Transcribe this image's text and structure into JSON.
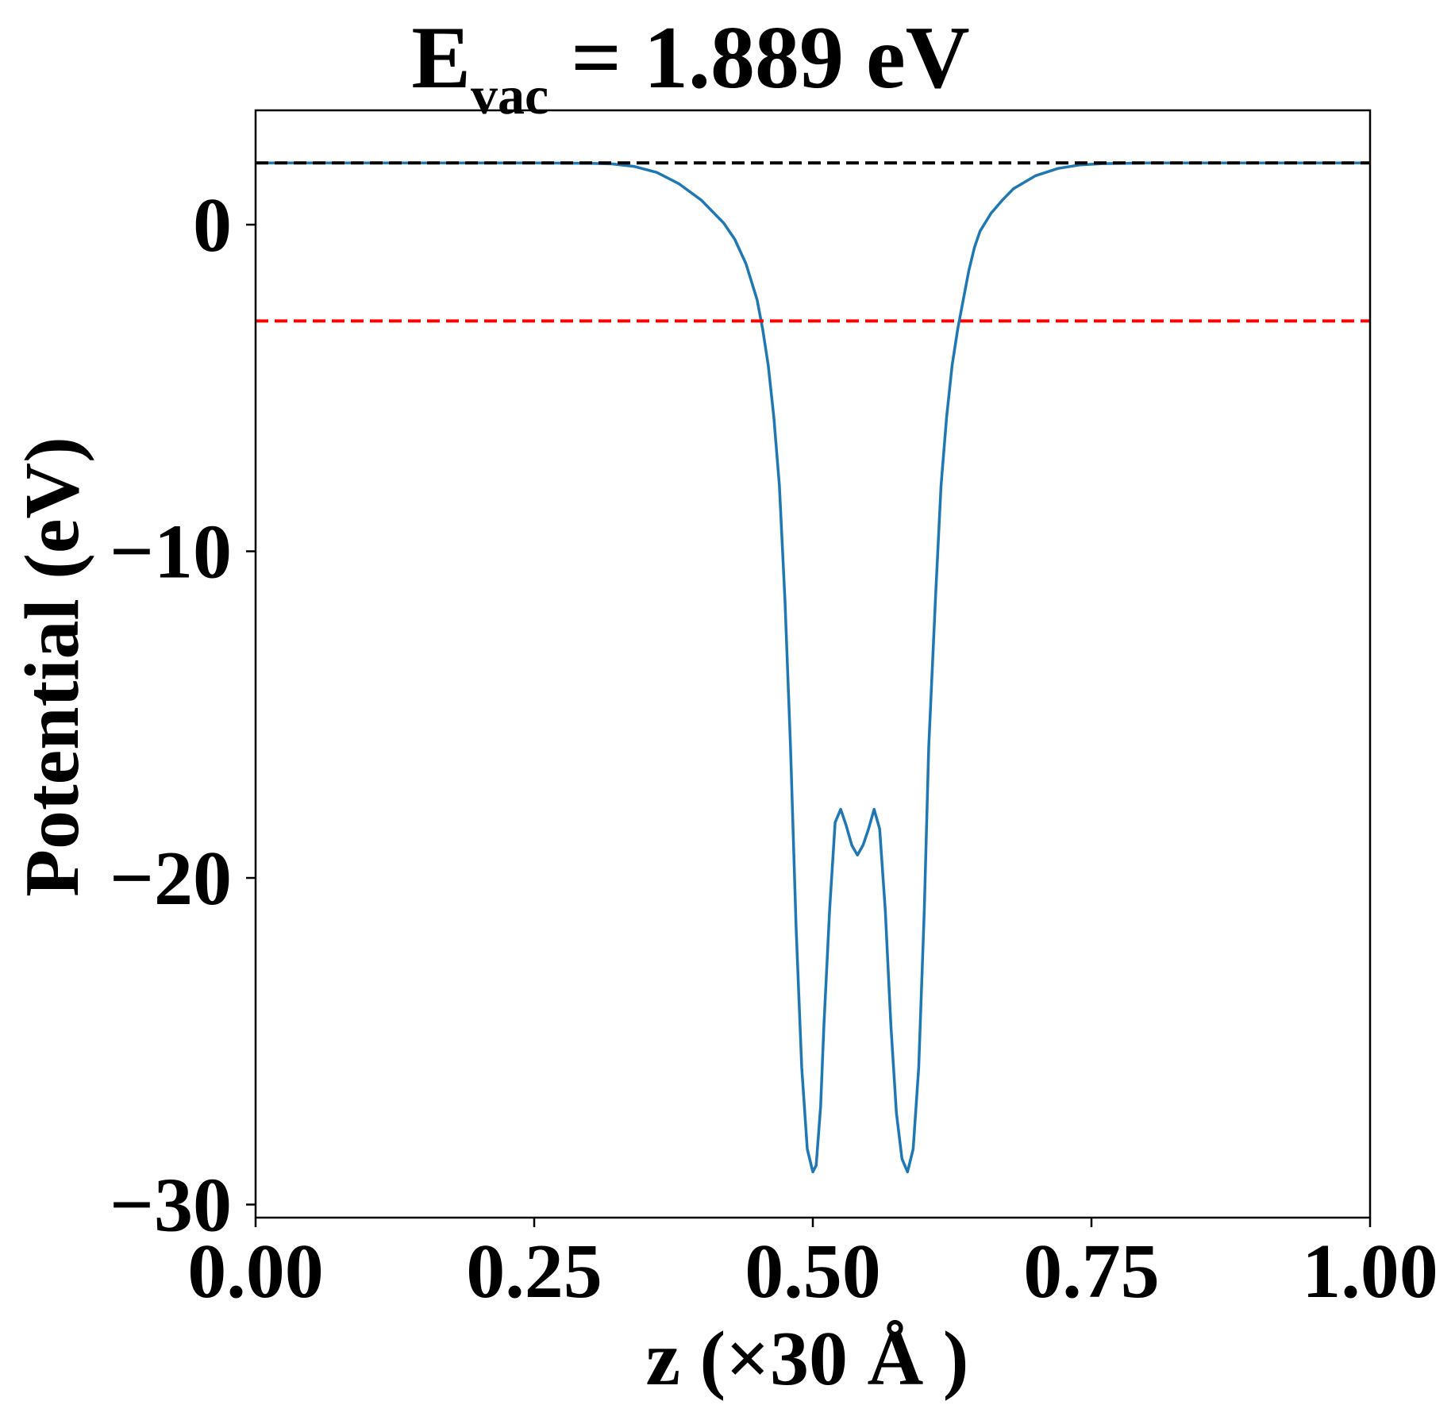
{
  "chart_data": {
    "type": "line",
    "title": {
      "main": "E",
      "subscript": "vac",
      "rest": " = 1.889 eV"
    },
    "xlabel": "z (×30 Å )",
    "ylabel": "Potential (eV)",
    "xlim": [
      0,
      1
    ],
    "ylim": [
      -30.4,
      3.5
    ],
    "xticks": [
      0,
      0.25,
      0.5,
      0.75,
      1
    ],
    "xtick_labels": [
      "0.00",
      "0.25",
      "0.50",
      "0.75",
      "1.00"
    ],
    "yticks": [
      0,
      -10,
      -20,
      -30
    ],
    "ytick_labels": [
      "0",
      "−10",
      "−20",
      "−30"
    ],
    "grid": false,
    "series": [
      {
        "color": "#1f77b4",
        "style": "solid",
        "x": [
          0.0,
          0.05,
          0.1,
          0.15,
          0.2,
          0.25,
          0.3,
          0.32,
          0.34,
          0.36,
          0.38,
          0.4,
          0.42,
          0.43,
          0.44,
          0.45,
          0.455,
          0.46,
          0.465,
          0.47,
          0.475,
          0.48,
          0.485,
          0.49,
          0.495,
          0.5,
          0.503,
          0.507,
          0.51,
          0.515,
          0.52,
          0.525,
          0.53,
          0.535,
          0.54,
          0.545,
          0.55,
          0.555,
          0.56,
          0.565,
          0.57,
          0.575,
          0.58,
          0.585,
          0.59,
          0.595,
          0.6,
          0.604,
          0.61,
          0.615,
          0.62,
          0.625,
          0.63,
          0.635,
          0.64,
          0.645,
          0.65,
          0.66,
          0.67,
          0.68,
          0.7,
          0.72,
          0.74,
          0.76,
          0.78,
          0.8,
          0.85,
          0.9,
          0.95,
          1.0
        ],
        "y": [
          1.89,
          1.89,
          1.89,
          1.89,
          1.89,
          1.89,
          1.88,
          1.86,
          1.78,
          1.6,
          1.25,
          0.75,
          0.05,
          -0.45,
          -1.2,
          -2.3,
          -3.2,
          -4.3,
          -5.9,
          -8.0,
          -11.5,
          -16.0,
          -21.5,
          -25.8,
          -28.3,
          -29.0,
          -28.8,
          -27.0,
          -24.5,
          -21.0,
          -18.3,
          -17.9,
          -18.4,
          -19.0,
          -19.3,
          -19.0,
          -18.5,
          -17.9,
          -18.5,
          -21.0,
          -24.5,
          -27.2,
          -28.6,
          -29.0,
          -28.3,
          -25.8,
          -21.0,
          -16.0,
          -11.5,
          -8.0,
          -5.9,
          -4.3,
          -3.2,
          -2.3,
          -1.4,
          -0.7,
          -0.2,
          0.35,
          0.75,
          1.1,
          1.5,
          1.72,
          1.83,
          1.87,
          1.88,
          1.89,
          1.89,
          1.89,
          1.89,
          1.89
        ]
      },
      {
        "color": "#000000",
        "style": "dashed",
        "x": [
          0,
          1
        ],
        "y": [
          1.889,
          1.889
        ]
      },
      {
        "color": "#ff0000",
        "style": "dashed",
        "x": [
          0,
          1
        ],
        "y": [
          -2.95,
          -2.95
        ]
      }
    ]
  }
}
